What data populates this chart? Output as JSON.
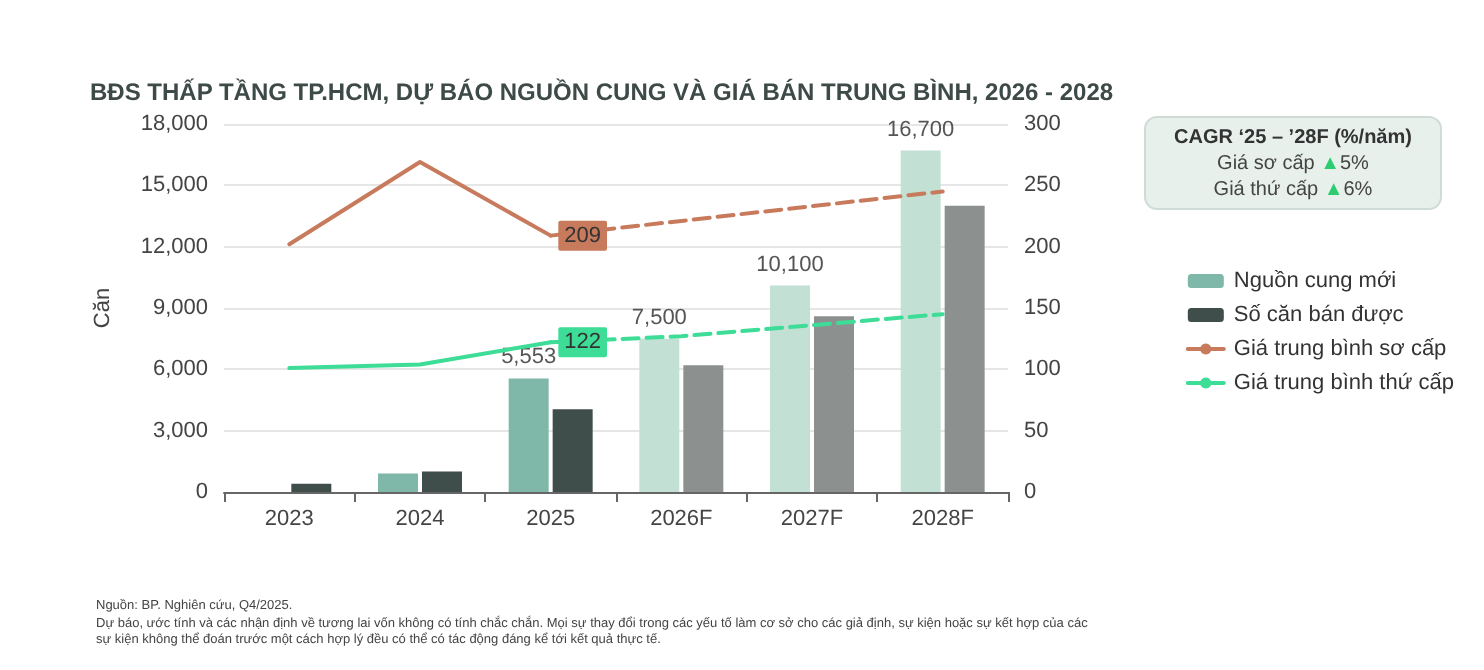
{
  "chart_data": {
    "type": "bar",
    "title": "BĐS THẤP TẦNG TP.HCM, DỰ BÁO NGUỒN CUNG VÀ GIÁ BÁN TRUNG BÌNH, 2026 - 2028",
    "ylabel": "Căn",
    "categories": [
      "2023",
      "2024",
      "2025",
      "2026F",
      "2027F",
      "2028F"
    ],
    "series": [
      {
        "name": "Nguồn cung mới",
        "color": "#7fb8a8",
        "colors": [
          "#7fb8a8",
          "#7fb8a8",
          "#7fb8a8",
          "#c3e0d5",
          "#c3e0d5",
          "#c3e0d5"
        ],
        "values": [
          0,
          900,
          5553,
          7500,
          10100,
          16700
        ],
        "value_labels": [
          null,
          null,
          "5,553",
          "7,500",
          "10,100",
          "16,700"
        ]
      },
      {
        "name": "Số căn bán được",
        "color": "#3f4d4b",
        "colors": [
          "#3f4d4b",
          "#3f4d4b",
          "#3f4d4b",
          "#8c9190",
          "#8c9190",
          "#8c9190"
        ],
        "values": [
          400,
          1000,
          4050,
          6200,
          8600,
          14000
        ]
      },
      {
        "type": "line",
        "axis": "y2",
        "color": "#c87a5c",
        "line_style": "solid",
        "values": [
          202,
          269,
          209,
          null,
          null,
          null
        ]
      },
      {
        "name": "Giá trung bình sơ cấp",
        "type": "line",
        "axis": "y2",
        "color": "#c87a5c",
        "line_style": "dashed",
        "values": [
          null,
          null,
          209,
          221,
          233,
          245
        ],
        "value_labels": [
          null,
          null,
          "209",
          null,
          null,
          null
        ]
      },
      {
        "type": "line",
        "axis": "y2",
        "color": "#3ddc97",
        "line_style": "solid",
        "values": [
          101,
          104,
          122,
          null,
          null,
          null
        ]
      },
      {
        "name": "Giá trung bình thứ cấp",
        "type": "line",
        "axis": "y2",
        "color": "#3ddc97",
        "line_style": "dashed",
        "values": [
          null,
          null,
          122,
          127,
          136,
          145
        ],
        "value_labels": [
          null,
          null,
          "122",
          null,
          null,
          null
        ]
      }
    ],
    "ylim": [
      0,
      18000
    ],
    "yticks": [
      0,
      {
        "value": 3000,
        "label": "3,000"
      },
      {
        "value": 6000,
        "label": "6,000"
      },
      {
        "value": 9000,
        "label": "9,000"
      },
      {
        "value": 12000,
        "label": "12,000"
      },
      {
        "value": 15000,
        "label": "15,000"
      },
      {
        "value": 18000,
        "label": "18,000"
      }
    ],
    "y2lim": [
      0,
      300
    ],
    "y2ticks": [
      0,
      50,
      100,
      150,
      200,
      250,
      300
    ],
    "grid": "y",
    "legend": "right",
    "marker": "none",
    "annotations": [
      "CAGR ‘25 – ’28F (%/năm)\nGiá sơ cấp ▲5%\nGiá thứ cấp ▲6%",
      "Nguồn: BP. Nghiên cứu, Q4/2025.",
      "Dự báo, ước tính và các nhận định về tương lai vốn không có tính chắc chắn. Mọi sự thay đổi trong các yếu tố làm cơ sở cho các giả định, sự kiện hoặc sự kết hợp của các sự kiện không thể đoán trước một cách hợp lý đều có thể có tác động đáng kể tới kết quả thực tế."
    ]
  }
}
